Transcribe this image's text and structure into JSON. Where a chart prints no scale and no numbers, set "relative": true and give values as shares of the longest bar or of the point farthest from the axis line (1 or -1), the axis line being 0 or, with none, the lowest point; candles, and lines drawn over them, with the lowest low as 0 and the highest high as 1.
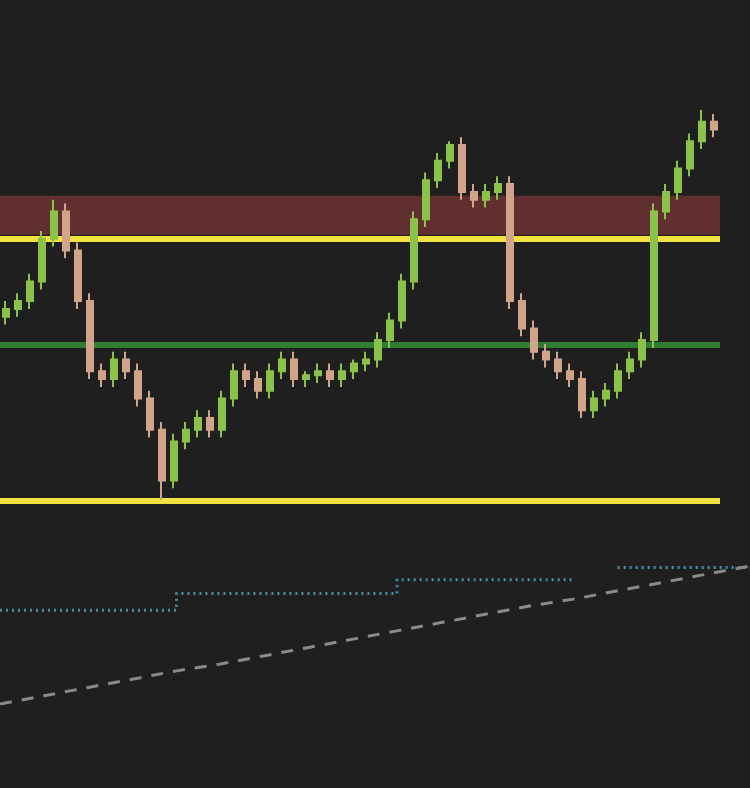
{
  "chart_data": [
    {
      "type": "candlestick",
      "relative": true,
      "categories": [
        null,
        null,
        null,
        null,
        null,
        null,
        null,
        null,
        null,
        null,
        null,
        null,
        null,
        null,
        null,
        null,
        null,
        null,
        null,
        null,
        null,
        null,
        null,
        null,
        null,
        null,
        null,
        null,
        null,
        null,
        null,
        null,
        null,
        null,
        null,
        null,
        null,
        null,
        null,
        null,
        null,
        null,
        null,
        null,
        null,
        null,
        null,
        null,
        null,
        null,
        null,
        null,
        null,
        null,
        null,
        null,
        null,
        null,
        null,
        null
      ],
      "ohlc": [
        [
          0.47,
          0.51,
          0.45,
          0.49
        ],
        [
          0.49,
          0.53,
          0.47,
          0.51
        ],
        [
          0.51,
          0.58,
          0.49,
          0.56
        ],
        [
          0.56,
          0.69,
          0.54,
          0.67
        ],
        [
          0.67,
          0.77,
          0.65,
          0.74
        ],
        [
          0.74,
          0.76,
          0.62,
          0.64
        ],
        [
          0.64,
          0.66,
          0.49,
          0.51
        ],
        [
          0.51,
          0.53,
          0.31,
          0.33
        ],
        [
          0.33,
          0.35,
          0.29,
          0.31
        ],
        [
          0.31,
          0.38,
          0.29,
          0.36
        ],
        [
          0.36,
          0.38,
          0.31,
          0.33
        ],
        [
          0.33,
          0.35,
          0.24,
          0.26
        ],
        [
          0.26,
          0.28,
          0.16,
          0.18
        ],
        [
          0.18,
          0.2,
          0,
          0.05
        ],
        [
          0.05,
          0.17,
          0.03,
          0.15
        ],
        [
          0.15,
          0.2,
          0.13,
          0.18
        ],
        [
          0.18,
          0.23,
          0.16,
          0.21
        ],
        [
          0.21,
          0.23,
          0.16,
          0.18
        ],
        [
          0.18,
          0.28,
          0.16,
          0.26
        ],
        [
          0.26,
          0.35,
          0.24,
          0.33
        ],
        [
          0.33,
          0.35,
          0.29,
          0.31
        ],
        [
          0.31,
          0.33,
          0.26,
          0.28
        ],
        [
          0.28,
          0.35,
          0.26,
          0.33
        ],
        [
          0.33,
          0.38,
          0.31,
          0.36
        ],
        [
          0.36,
          0.38,
          0.29,
          0.31
        ],
        [
          0.31,
          0.33,
          0.29,
          0.32
        ],
        [
          0.32,
          0.35,
          0.3,
          0.33
        ],
        [
          0.33,
          0.35,
          0.29,
          0.31
        ],
        [
          0.31,
          0.35,
          0.29,
          0.33
        ],
        [
          0.33,
          0.36,
          0.31,
          0.35
        ],
        [
          0.35,
          0.38,
          0.33,
          0.36
        ],
        [
          0.36,
          0.43,
          0.34,
          0.41
        ],
        [
          0.41,
          0.48,
          0.39,
          0.46
        ],
        [
          0.46,
          0.58,
          0.44,
          0.56
        ],
        [
          0.56,
          0.74,
          0.54,
          0.72
        ],
        [
          0.72,
          0.84,
          0.7,
          0.82
        ],
        [
          0.82,
          0.89,
          0.8,
          0.87
        ],
        [
          0.87,
          0.92,
          0.85,
          0.91
        ],
        [
          0.91,
          0.93,
          0.77,
          0.79
        ],
        [
          0.79,
          0.81,
          0.75,
          0.77
        ],
        [
          0.77,
          0.81,
          0.75,
          0.79
        ],
        [
          0.79,
          0.83,
          0.77,
          0.81
        ],
        [
          0.81,
          0.83,
          0.49,
          0.51
        ],
        [
          0.51,
          0.53,
          0.42,
          0.44
        ],
        [
          0.44,
          0.46,
          0.36,
          0.38
        ],
        [
          0.38,
          0.4,
          0.34,
          0.36
        ],
        [
          0.36,
          0.38,
          0.31,
          0.33
        ],
        [
          0.33,
          0.35,
          0.29,
          0.31
        ],
        [
          0.31,
          0.33,
          0.21,
          0.23
        ],
        [
          0.23,
          0.28,
          0.21,
          0.26
        ],
        [
          0.26,
          0.3,
          0.24,
          0.28
        ],
        [
          0.28,
          0.35,
          0.26,
          0.33
        ],
        [
          0.33,
          0.38,
          0.31,
          0.36
        ],
        [
          0.36,
          0.43,
          0.34,
          0.41
        ],
        [
          0.41,
          0.76,
          0.39,
          0.74
        ],
        [
          0.74,
          0.81,
          0.72,
          0.79
        ],
        [
          0.79,
          0.87,
          0.77,
          0.85
        ],
        [
          0.85,
          0.94,
          0.83,
          0.92
        ],
        [
          0.92,
          1,
          0.9,
          0.97
        ],
        [
          0.97,
          0.99,
          0.93,
          0.95
        ]
      ],
      "colors": [
        "#8bc34a",
        "#8bc34a",
        "#8bc34a",
        "#8bc34a",
        "#8bc34a",
        "#d2a58a",
        "#d2a58a",
        "#d2a58a",
        "#d2a58a",
        "#8bc34a",
        "#d2a58a",
        "#d2a58a",
        "#d2a58a",
        "#d2a58a",
        "#8bc34a",
        "#8bc34a",
        "#8bc34a",
        "#d2a58a",
        "#8bc34a",
        "#8bc34a",
        "#d2a58a",
        "#d2a58a",
        "#8bc34a",
        "#8bc34a",
        "#d2a58a",
        "#8bc34a",
        "#8bc34a",
        "#d2a58a",
        "#8bc34a",
        "#8bc34a",
        "#8bc34a",
        "#8bc34a",
        "#8bc34a",
        "#8bc34a",
        "#8bc34a",
        "#8bc34a",
        "#8bc34a",
        "#8bc34a",
        "#d2a58a",
        "#d2a58a",
        "#8bc34a",
        "#8bc34a",
        "#d2a58a",
        "#d2a58a",
        "#d2a58a",
        "#d2a58a",
        "#d2a58a",
        "#d2a58a",
        "#d2a58a",
        "#8bc34a",
        "#8bc34a",
        "#8bc34a",
        "#8bc34a",
        "#8bc34a",
        "#8bc34a",
        "#8bc34a",
        "#8bc34a",
        "#8bc34a",
        "#8bc34a",
        "#d2a58a"
      ],
      "ref_lines": [
        {
          "axis": "y",
          "value": 0.67,
          "color": "#f0e040"
        },
        {
          "axis": "y",
          "value": 0,
          "color": "#f0e040"
        },
        {
          "axis": "y",
          "value": 0.4,
          "color": "#2e7d32"
        }
      ],
      "bands": [
        {
          "axis": "y",
          "from": 0.68,
          "to": 0.78,
          "color": "#7a3538"
        }
      ]
    },
    {
      "type": "line",
      "relative": true,
      "categories": [
        null,
        null,
        null,
        null,
        null,
        null,
        null,
        null,
        null,
        null,
        null,
        null,
        null,
        null,
        null,
        null,
        null,
        null
      ],
      "series": [
        {
          "type": "step",
          "color": "#4a8fa8",
          "line_style": "dotted",
          "values": [
            0.68,
            0.68,
            0.68,
            0.68,
            0.8,
            0.8,
            0.8,
            0.8,
            0.8,
            0.9,
            0.9,
            0.9,
            0.9,
            null,
            0.99,
            0.99,
            0.99,
            0.99
          ]
        },
        {
          "type": "line",
          "color": "#8a8a8a",
          "line_style": "dashed",
          "values": [
            0,
            0.06,
            0.12,
            0.18,
            0.24,
            0.29,
            0.35,
            0.41,
            0.47,
            0.53,
            0.59,
            0.65,
            0.71,
            0.76,
            0.82,
            0.88,
            0.94,
            1
          ]
        }
      ],
      "marker": "none"
    }
  ]
}
